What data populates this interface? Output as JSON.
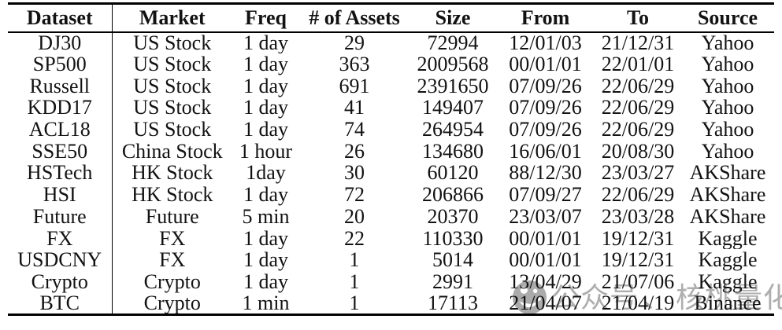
{
  "page": {
    "background": "#ffffff",
    "text_color": "#121212",
    "rule_color": "#000000"
  },
  "chart_data": {
    "type": "table",
    "title": "",
    "columns": [
      "Dataset",
      "Market",
      "Freq",
      "# of Assets",
      "Size",
      "From",
      "To",
      "Source"
    ],
    "rows": [
      [
        "DJ30",
        "US Stock",
        "1 day",
        "29",
        "72994",
        "12/01/03",
        "21/12/31",
        "Yahoo"
      ],
      [
        "SP500",
        "US Stock",
        "1 day",
        "363",
        "2009568",
        "00/01/01",
        "22/01/01",
        "Yahoo"
      ],
      [
        "Russell",
        "US Stock",
        "1 day",
        "691",
        "2391650",
        "07/09/26",
        "22/06/29",
        "Yahoo"
      ],
      [
        "KDD17",
        "US Stock",
        "1 day",
        "41",
        "149407",
        "07/09/26",
        "22/06/29",
        "Yahoo"
      ],
      [
        "ACL18",
        "US Stock",
        "1 day",
        "74",
        "264954",
        "07/09/26",
        "22/06/29",
        "Yahoo"
      ],
      [
        "SSE50",
        "China Stock",
        "1 hour",
        "26",
        "134680",
        "16/06/01",
        "20/08/30",
        "Yahoo"
      ],
      [
        "HSTech",
        "HK Stock",
        "1day",
        "30",
        "60120",
        "88/12/30",
        "23/03/27",
        "AKShare"
      ],
      [
        "HSI",
        "HK Stock",
        "1 day",
        "72",
        "206866",
        "07/09/27",
        "22/06/29",
        "AKShare"
      ],
      [
        "Future",
        "Future",
        "5 min",
        "20",
        "20370",
        "23/03/07",
        "23/03/28",
        "AKShare"
      ],
      [
        "FX",
        "FX",
        "1 day",
        "22",
        "110330",
        "00/01/01",
        "19/12/31",
        "Kaggle"
      ],
      [
        "USDCNY",
        "FX",
        "1 day",
        "1",
        "5014",
        "00/01/01",
        "19/12/31",
        "Kaggle"
      ],
      [
        "Crypto",
        "Crypto",
        "1 day",
        "1",
        "2991",
        "13/04/29",
        "21/07/06",
        "Kaggle"
      ],
      [
        "BTC",
        "Crypto",
        "1 min",
        "1",
        "17113",
        "21/04/07",
        "21/04/19",
        "Binance"
      ]
    ],
    "layout_hints": {
      "grid": "booktabs rules only: thick top rule, thin header rule, thick bottom rule",
      "vertical_rule_after_column": "Dataset",
      "alignment": "all columns centered"
    }
  },
  "watermark": {
    "icon": "walnut-logo-icon",
    "prefix": "公众号",
    "separator": "、",
    "suffix": "核桃量化",
    "color": "#a6a6a6"
  }
}
